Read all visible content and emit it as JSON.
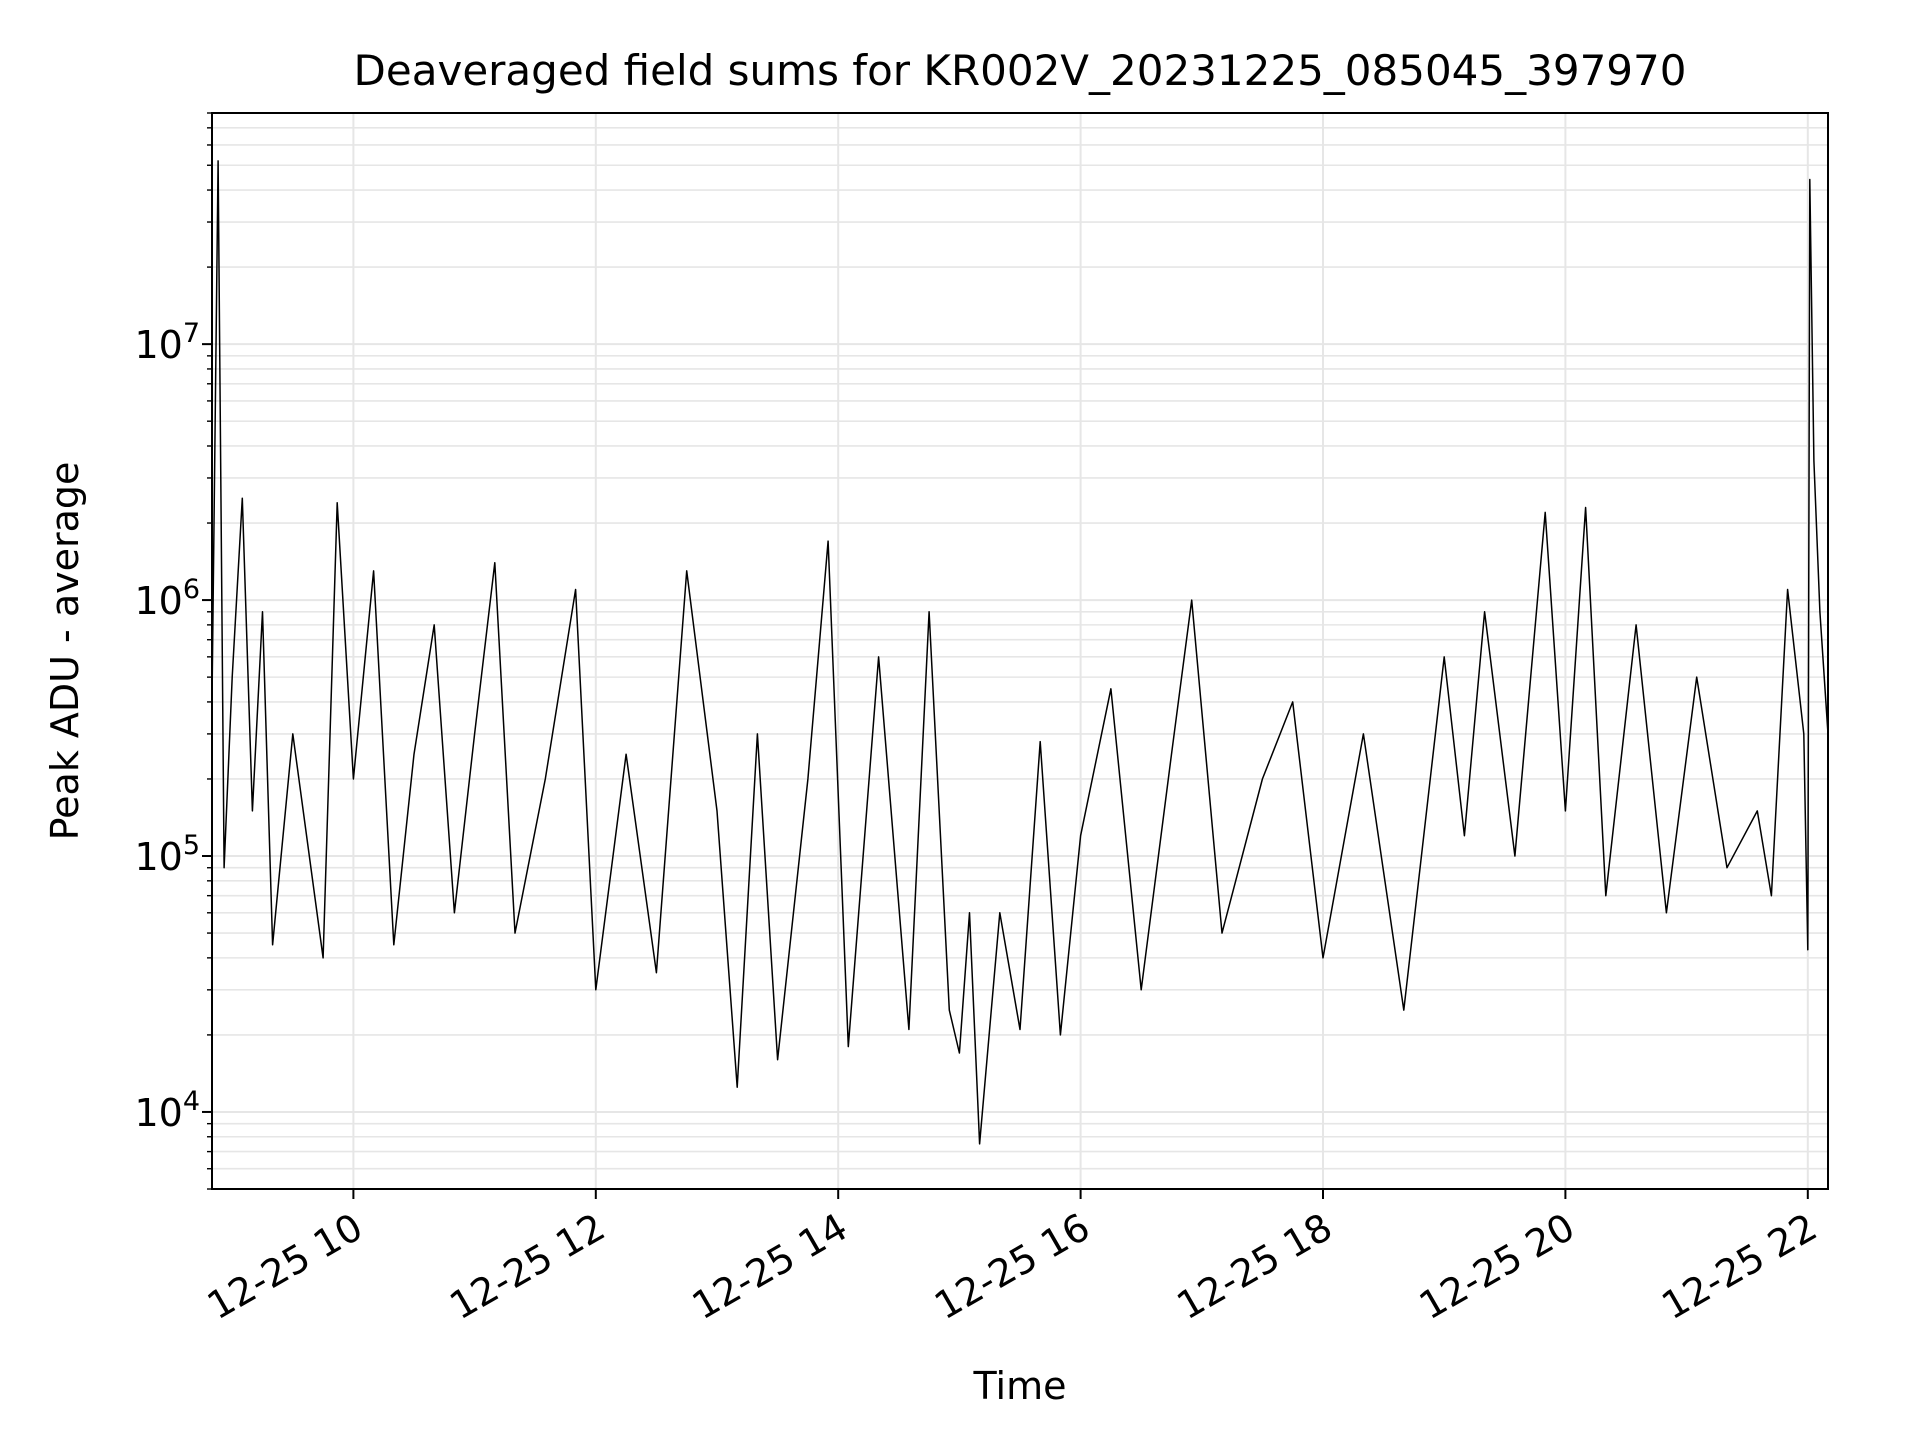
{
  "chart_data": {
    "type": "line",
    "title": "Deaveraged field sums for KR002V_20231225_085045_397970",
    "xlabel": "Time",
    "ylabel": "Peak ADU - average",
    "x_is_time": true,
    "xlim": [
      "2023-12-25 08:50",
      "2023-12-25 22:10"
    ],
    "x_ticks": [
      {
        "value": "2023-12-25 10:00",
        "label": "12-25 10"
      },
      {
        "value": "2023-12-25 12:00",
        "label": "12-25 12"
      },
      {
        "value": "2023-12-25 14:00",
        "label": "12-25 14"
      },
      {
        "value": "2023-12-25 16:00",
        "label": "12-25 16"
      },
      {
        "value": "2023-12-25 18:00",
        "label": "12-25 18"
      },
      {
        "value": "2023-12-25 20:00",
        "label": "12-25 20"
      },
      {
        "value": "2023-12-25 22:00",
        "label": "12-25 22"
      }
    ],
    "y_scale": "log",
    "ylim": [
      5000,
      80000000
    ],
    "y_ticks": [
      {
        "value": 10000,
        "base": "10",
        "exp": "4"
      },
      {
        "value": 100000,
        "base": "10",
        "exp": "5"
      },
      {
        "value": 1000000,
        "base": "10",
        "exp": "6"
      },
      {
        "value": 10000000,
        "base": "10",
        "exp": "7"
      }
    ],
    "grid": true,
    "line_color": "#000000",
    "series": [
      {
        "values": [
          [
            "2023-12-25 08:50",
            400000
          ],
          [
            "2023-12-25 08:53",
            52000000
          ],
          [
            "2023-12-25 08:56",
            90000
          ],
          [
            "2023-12-25 09:00",
            500000
          ],
          [
            "2023-12-25 09:05",
            2500000
          ],
          [
            "2023-12-25 09:10",
            150000
          ],
          [
            "2023-12-25 09:15",
            900000
          ],
          [
            "2023-12-25 09:20",
            45000
          ],
          [
            "2023-12-25 09:30",
            300000
          ],
          [
            "2023-12-25 09:45",
            40000
          ],
          [
            "2023-12-25 09:52",
            2400000
          ],
          [
            "2023-12-25 10:00",
            200000
          ],
          [
            "2023-12-25 10:10",
            1300000
          ],
          [
            "2023-12-25 10:20",
            45000
          ],
          [
            "2023-12-25 10:30",
            250000
          ],
          [
            "2023-12-25 10:40",
            800000
          ],
          [
            "2023-12-25 10:50",
            60000
          ],
          [
            "2023-12-25 11:00",
            300000
          ],
          [
            "2023-12-25 11:10",
            1400000
          ],
          [
            "2023-12-25 11:20",
            50000
          ],
          [
            "2023-12-25 11:35",
            200000
          ],
          [
            "2023-12-25 11:50",
            1100000
          ],
          [
            "2023-12-25 12:00",
            30000
          ],
          [
            "2023-12-25 12:15",
            250000
          ],
          [
            "2023-12-25 12:30",
            35000
          ],
          [
            "2023-12-25 12:45",
            1300000
          ],
          [
            "2023-12-25 13:00",
            150000
          ],
          [
            "2023-12-25 13:10",
            12500
          ],
          [
            "2023-12-25 13:20",
            300000
          ],
          [
            "2023-12-25 13:30",
            16000
          ],
          [
            "2023-12-25 13:45",
            200000
          ],
          [
            "2023-12-25 13:55",
            1700000
          ],
          [
            "2023-12-25 14:05",
            18000
          ],
          [
            "2023-12-25 14:20",
            600000
          ],
          [
            "2023-12-25 14:35",
            21000
          ],
          [
            "2023-12-25 14:45",
            900000
          ],
          [
            "2023-12-25 14:55",
            25000
          ],
          [
            "2023-12-25 15:00",
            17000
          ],
          [
            "2023-12-25 15:05",
            60000
          ],
          [
            "2023-12-25 15:10",
            7500
          ],
          [
            "2023-12-25 15:20",
            60000
          ],
          [
            "2023-12-25 15:30",
            21000
          ],
          [
            "2023-12-25 15:40",
            280000
          ],
          [
            "2023-12-25 15:50",
            20000
          ],
          [
            "2023-12-25 16:00",
            120000
          ],
          [
            "2023-12-25 16:15",
            450000
          ],
          [
            "2023-12-25 16:30",
            30000
          ],
          [
            "2023-12-25 16:45",
            250000
          ],
          [
            "2023-12-25 16:55",
            1000000
          ],
          [
            "2023-12-25 17:10",
            50000
          ],
          [
            "2023-12-25 17:30",
            200000
          ],
          [
            "2023-12-25 17:45",
            400000
          ],
          [
            "2023-12-25 18:00",
            40000
          ],
          [
            "2023-12-25 18:20",
            300000
          ],
          [
            "2023-12-25 18:40",
            25000
          ],
          [
            "2023-12-25 19:00",
            600000
          ],
          [
            "2023-12-25 19:10",
            120000
          ],
          [
            "2023-12-25 19:20",
            900000
          ],
          [
            "2023-12-25 19:35",
            100000
          ],
          [
            "2023-12-25 19:50",
            2200000
          ],
          [
            "2023-12-25 20:00",
            150000
          ],
          [
            "2023-12-25 20:10",
            2300000
          ],
          [
            "2023-12-25 20:20",
            70000
          ],
          [
            "2023-12-25 20:35",
            800000
          ],
          [
            "2023-12-25 20:50",
            60000
          ],
          [
            "2023-12-25 21:05",
            500000
          ],
          [
            "2023-12-25 21:20",
            90000
          ],
          [
            "2023-12-25 21:35",
            150000
          ],
          [
            "2023-12-25 21:42",
            70000
          ],
          [
            "2023-12-25 21:50",
            1100000
          ],
          [
            "2023-12-25 21:58",
            300000
          ],
          [
            "2023-12-25 22:00",
            43000
          ],
          [
            "2023-12-25 22:01",
            44000000
          ],
          [
            "2023-12-25 22:03",
            3500000
          ],
          [
            "2023-12-25 22:06",
            900000
          ],
          [
            "2023-12-25 22:10",
            300000
          ]
        ]
      }
    ]
  }
}
